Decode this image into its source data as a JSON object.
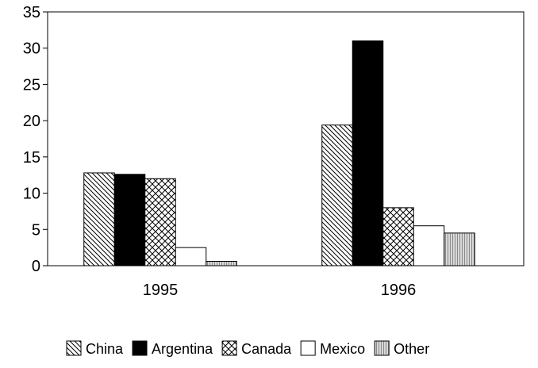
{
  "chart_data": {
    "type": "bar",
    "title": "",
    "xlabel": "",
    "ylabel": "",
    "categories": [
      "1995",
      "1996"
    ],
    "series": [
      {
        "name": "China",
        "values": [
          12.8,
          19.4
        ],
        "fill": "hatch-diagonal"
      },
      {
        "name": "Argentina",
        "values": [
          12.6,
          31.0
        ],
        "fill": "solid-black"
      },
      {
        "name": "Canada",
        "values": [
          12.0,
          8.0
        ],
        "fill": "crosshatch"
      },
      {
        "name": "Mexico",
        "values": [
          2.5,
          5.5
        ],
        "fill": "white"
      },
      {
        "name": "Other",
        "values": [
          0.6,
          4.5
        ],
        "fill": "gray-stipple"
      }
    ],
    "ylim": [
      0,
      35
    ],
    "yticks": [
      0,
      5,
      10,
      15,
      20,
      25,
      30,
      35
    ],
    "grid": false,
    "legend_position": "bottom"
  }
}
